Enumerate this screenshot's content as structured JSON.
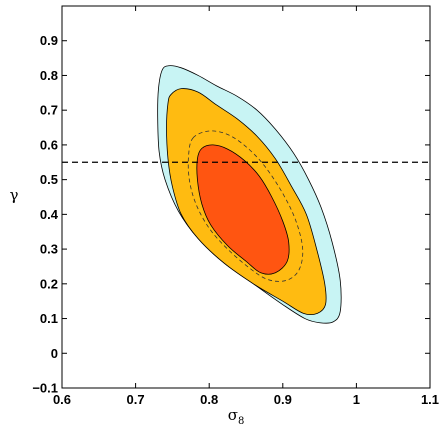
{
  "chart_data": {
    "type": "contour",
    "xlabel": "σ",
    "xlabel_sub": "8",
    "ylabel": "γ",
    "xlim": [
      0.6,
      1.1
    ],
    "ylim": [
      -0.1,
      1.0
    ],
    "xticks": [
      0.6,
      0.7,
      0.8,
      0.9,
      1,
      1.1
    ],
    "xtick_labels": [
      "0.6",
      "0.7",
      "0.8",
      "0.9",
      "1",
      "1.1"
    ],
    "yticks": [
      -0.1,
      0,
      0.1,
      0.2,
      0.3,
      0.4,
      0.5,
      0.6,
      0.7,
      0.8,
      0.9
    ],
    "ytick_labels": [
      "−0.1",
      "0",
      "0.1",
      "0.2",
      "0.3",
      "0.4",
      "0.5",
      "0.6",
      "0.7",
      "0.8",
      "0.9"
    ],
    "grid": false,
    "reference_line": {
      "axis": "y",
      "value": 0.55,
      "style": "dashed"
    },
    "contours": [
      {
        "level": "outer",
        "color": "#c8f4f4",
        "points": [
          [
            0.736,
            0.815
          ],
          [
            0.745,
            0.828
          ],
          [
            0.762,
            0.822
          ],
          [
            0.785,
            0.8
          ],
          [
            0.81,
            0.77
          ],
          [
            0.838,
            0.74
          ],
          [
            0.865,
            0.7
          ],
          [
            0.89,
            0.645
          ],
          [
            0.915,
            0.575
          ],
          [
            0.935,
            0.5
          ],
          [
            0.952,
            0.42
          ],
          [
            0.967,
            0.32
          ],
          [
            0.978,
            0.21
          ],
          [
            0.978,
            0.12
          ],
          [
            0.968,
            0.09
          ],
          [
            0.95,
            0.088
          ],
          [
            0.93,
            0.1
          ],
          [
            0.9,
            0.14
          ],
          [
            0.86,
            0.2
          ],
          [
            0.82,
            0.26
          ],
          [
            0.785,
            0.33
          ],
          [
            0.758,
            0.41
          ],
          [
            0.74,
            0.5
          ],
          [
            0.732,
            0.58
          ],
          [
            0.73,
            0.68
          ],
          [
            0.731,
            0.76
          ]
        ]
      },
      {
        "level": "middle",
        "color": "#ffbb11",
        "points": [
          [
            0.748,
            0.745
          ],
          [
            0.762,
            0.762
          ],
          [
            0.785,
            0.752
          ],
          [
            0.81,
            0.715
          ],
          [
            0.838,
            0.675
          ],
          [
            0.865,
            0.625
          ],
          [
            0.89,
            0.56
          ],
          [
            0.912,
            0.48
          ],
          [
            0.932,
            0.4
          ],
          [
            0.946,
            0.3
          ],
          [
            0.957,
            0.2
          ],
          [
            0.958,
            0.14
          ],
          [
            0.947,
            0.115
          ],
          [
            0.928,
            0.115
          ],
          [
            0.9,
            0.15
          ],
          [
            0.86,
            0.2
          ],
          [
            0.82,
            0.26
          ],
          [
            0.785,
            0.33
          ],
          [
            0.762,
            0.4
          ],
          [
            0.75,
            0.48
          ],
          [
            0.744,
            0.56
          ],
          [
            0.742,
            0.65
          ],
          [
            0.744,
            0.72
          ]
        ]
      },
      {
        "level": "inner",
        "color": "#ff5511",
        "points": [
          [
            0.79,
            0.59
          ],
          [
            0.805,
            0.6
          ],
          [
            0.825,
            0.588
          ],
          [
            0.848,
            0.555
          ],
          [
            0.868,
            0.51
          ],
          [
            0.885,
            0.45
          ],
          [
            0.9,
            0.38
          ],
          [
            0.908,
            0.32
          ],
          [
            0.906,
            0.265
          ],
          [
            0.89,
            0.232
          ],
          [
            0.87,
            0.232
          ],
          [
            0.85,
            0.265
          ],
          [
            0.825,
            0.31
          ],
          [
            0.802,
            0.37
          ],
          [
            0.79,
            0.43
          ],
          [
            0.784,
            0.5
          ],
          [
            0.784,
            0.56
          ]
        ]
      },
      {
        "level": "dashed",
        "color": "none",
        "points": [
          [
            0.778,
            0.62
          ],
          [
            0.8,
            0.64
          ],
          [
            0.825,
            0.63
          ],
          [
            0.85,
            0.595
          ],
          [
            0.875,
            0.54
          ],
          [
            0.9,
            0.46
          ],
          [
            0.918,
            0.38
          ],
          [
            0.927,
            0.3
          ],
          [
            0.922,
            0.24
          ],
          [
            0.905,
            0.21
          ],
          [
            0.88,
            0.212
          ],
          [
            0.855,
            0.245
          ],
          [
            0.825,
            0.3
          ],
          [
            0.8,
            0.36
          ],
          [
            0.782,
            0.43
          ],
          [
            0.773,
            0.5
          ],
          [
            0.772,
            0.57
          ]
        ]
      }
    ]
  }
}
